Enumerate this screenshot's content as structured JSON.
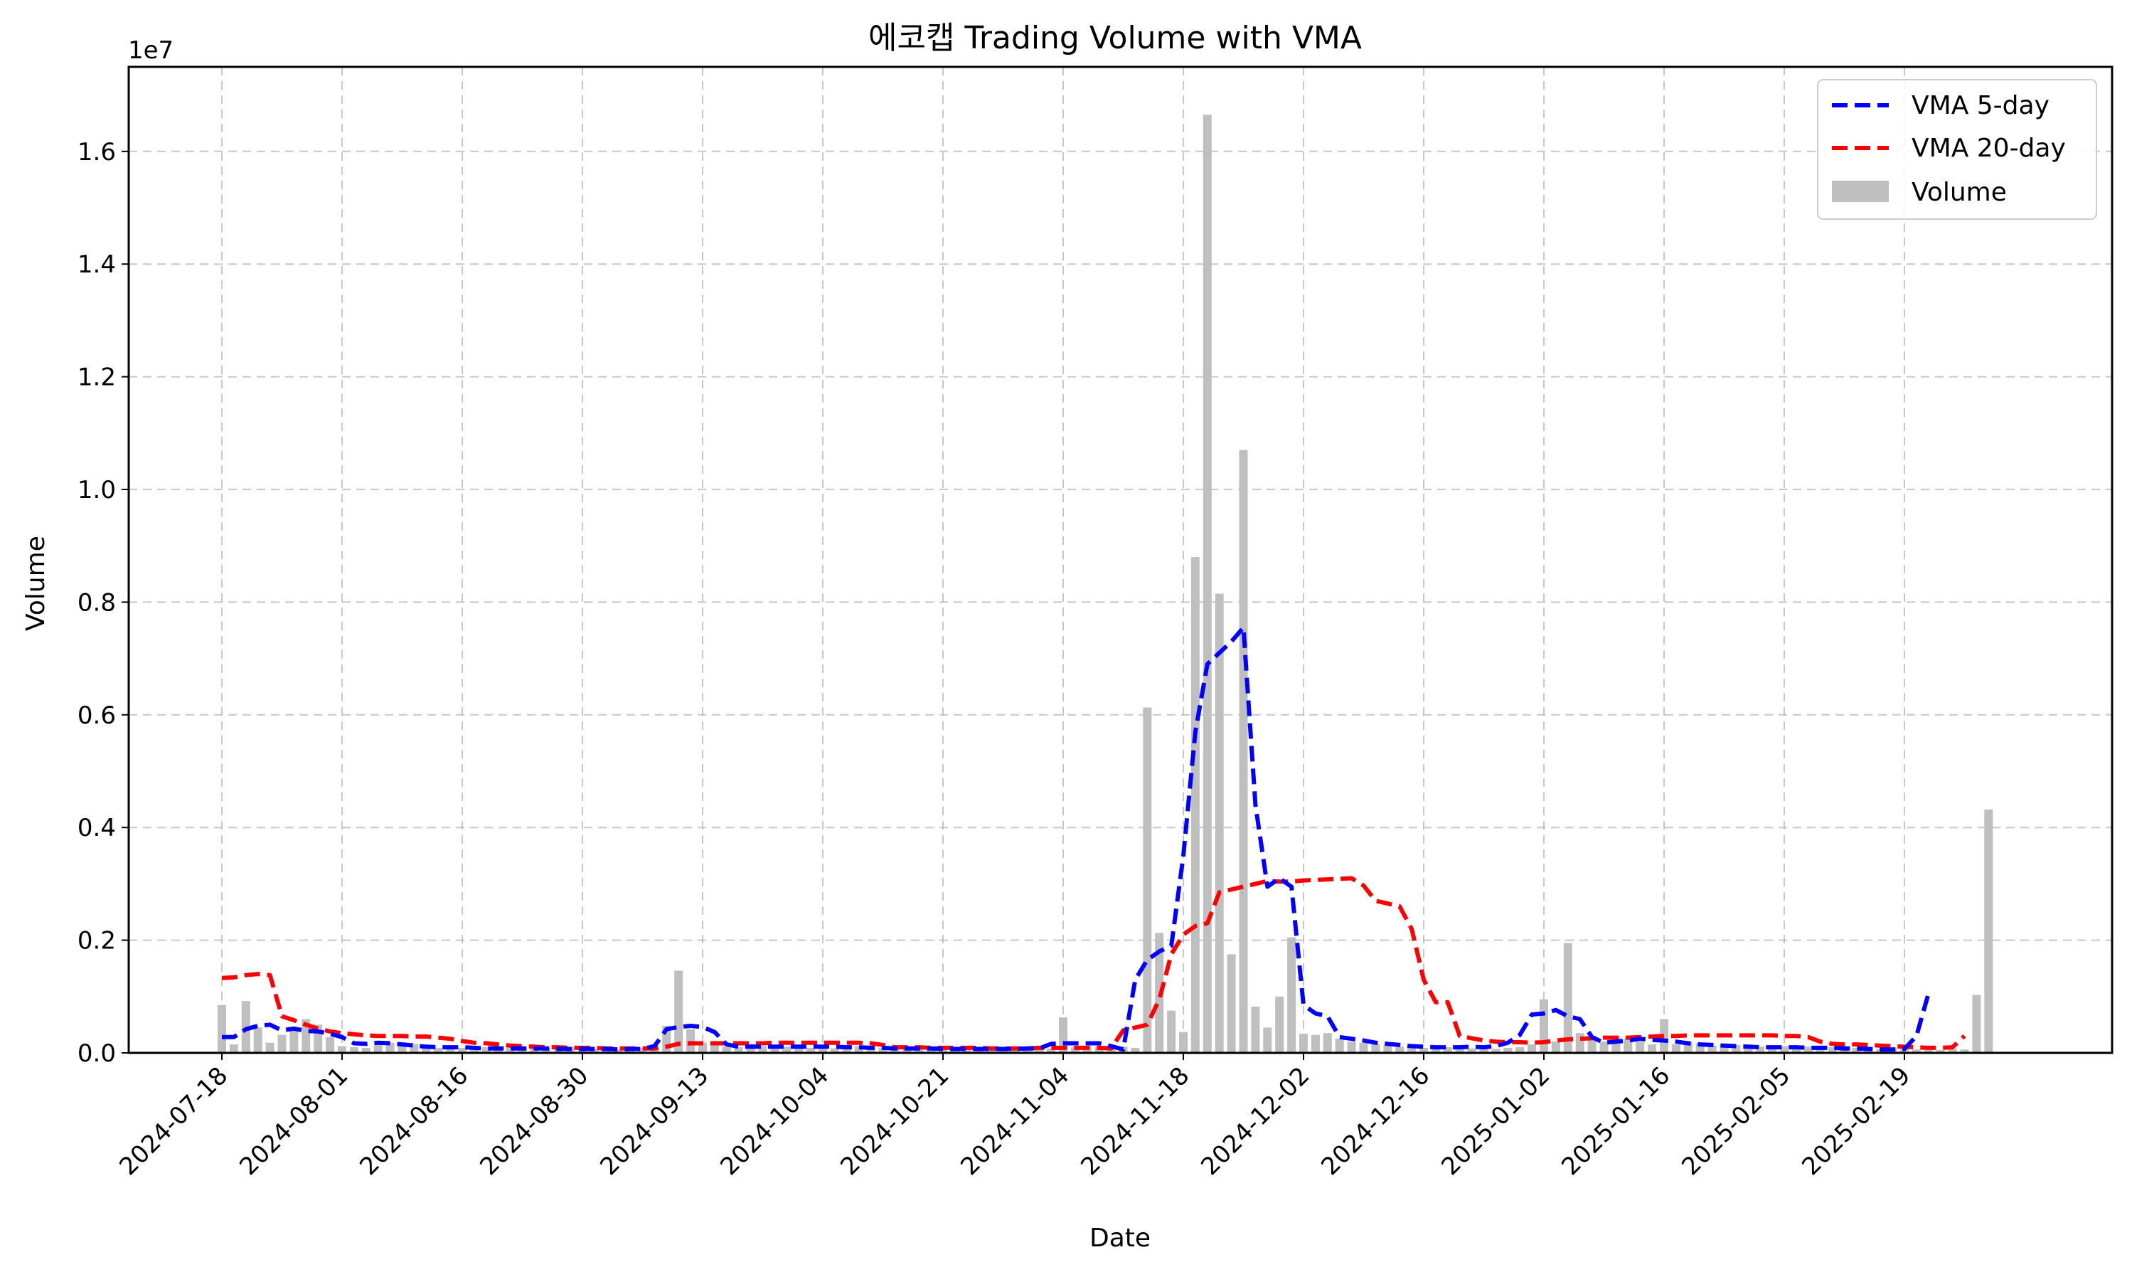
{
  "chart_data": {
    "type": "bar",
    "title": "에코캡 Trading Volume with VMA",
    "xlabel": "Date",
    "ylabel": "Volume",
    "y_offset_text": "1e7",
    "ylim": [
      0,
      17500000
    ],
    "yticks": [
      0,
      2000000,
      4000000,
      6000000,
      8000000,
      10000000,
      12000000,
      14000000,
      16000000
    ],
    "ytick_labels": [
      "0.0",
      "0.2",
      "0.4",
      "0.6",
      "0.8",
      "1.0",
      "1.2",
      "1.4",
      "1.6"
    ],
    "xticks": [
      "2024-07-18",
      "2024-08-01",
      "2024-08-16",
      "2024-08-30",
      "2024-09-13",
      "2024-10-04",
      "2024-10-21",
      "2024-11-04",
      "2024-11-18",
      "2024-12-02",
      "2024-12-16",
      "2025-01-02",
      "2025-01-16",
      "2025-02-05",
      "2025-02-19"
    ],
    "xtick_index": [
      0,
      10,
      20,
      30,
      40,
      50,
      60,
      70,
      80,
      90,
      100,
      110,
      120,
      130,
      140
    ],
    "grid": true,
    "legend_position": "top-right",
    "legend": [
      "VMA 5-day",
      "VMA 20-day",
      "Volume"
    ],
    "colors": {
      "volume": "#bfbfbf",
      "vma5": "#0000ff",
      "vma20": "#ff0000"
    },
    "volume": [
      850000,
      150000,
      920000,
      450000,
      180000,
      320000,
      400000,
      600000,
      500000,
      280000,
      120000,
      100000,
      90000,
      200000,
      180000,
      120000,
      160000,
      110000,
      90000,
      130000,
      90000,
      110000,
      100000,
      90000,
      110000,
      90000,
      80000,
      90000,
      80000,
      100000,
      80000,
      70000,
      80000,
      60000,
      70000,
      90000,
      80000,
      480000,
      1460000,
      420000,
      180000,
      160000,
      110000,
      100000,
      160000,
      120000,
      90000,
      110000,
      120000,
      90000,
      100000,
      80000,
      110000,
      120000,
      100000,
      90000,
      80000,
      100000,
      90000,
      80000,
      70000,
      80000,
      70000,
      60000,
      70000,
      80000,
      90000,
      70000,
      90000,
      80000,
      630000,
      100000,
      120000,
      100000,
      130000,
      110000,
      90000,
      6130000,
      2130000,
      750000,
      370000,
      8800000,
      16650000,
      8150000,
      1750000,
      10700000,
      820000,
      450000,
      1000000,
      2050000,
      340000,
      320000,
      350000,
      250000,
      200000,
      180000,
      150000,
      130000,
      110000,
      100000,
      90000,
      110000,
      100000,
      90000,
      80000,
      80000,
      70000,
      90000,
      100000,
      150000,
      950000,
      200000,
      1950000,
      350000,
      300000,
      200000,
      300000,
      250000,
      200000,
      150000,
      600000,
      150000,
      200000,
      170000,
      130000,
      150000,
      140000,
      120000,
      110000,
      130000,
      120000,
      100000,
      110000,
      90000,
      100000,
      80000,
      90000,
      80000,
      70000,
      80000,
      70000,
      60000,
      50000,
      50000,
      80000,
      60000,
      1030000,
      4320000
    ],
    "vma5": [
      280000,
      280000,
      420000,
      480000,
      500000,
      400000,
      430000,
      390000,
      380000,
      340000,
      280000,
      170000,
      160000,
      180000,
      170000,
      150000,
      130000,
      110000,
      100000,
      100000,
      100000,
      90000,
      80000,
      80000,
      80000,
      80000,
      80000,
      80000,
      70000,
      70000,
      70000,
      70000,
      70000,
      60000,
      70000,
      70000,
      120000,
      420000,
      460000,
      480000,
      460000,
      370000,
      150000,
      110000,
      110000,
      110000,
      110000,
      110000,
      110000,
      110000,
      110000,
      110000,
      100000,
      100000,
      90000,
      90000,
      80000,
      80000,
      80000,
      80000,
      70000,
      70000,
      70000,
      70000,
      70000,
      70000,
      70000,
      80000,
      80000,
      160000,
      170000,
      170000,
      170000,
      170000,
      120000,
      60000,
      1300000,
      1650000,
      1800000,
      1900000,
      3500000,
      5700000,
      6900000,
      7100000,
      7300000,
      7550000,
      4400000,
      2950000,
      3100000,
      2950000,
      850000,
      700000,
      650000,
      280000,
      250000,
      220000,
      180000,
      160000,
      140000,
      120000,
      110000,
      100000,
      100000,
      100000,
      110000,
      100000,
      120000,
      180000,
      320000,
      680000,
      700000,
      760000,
      650000,
      600000,
      280000,
      180000,
      200000,
      220000,
      250000,
      230000,
      220000,
      200000,
      170000,
      150000,
      140000,
      130000,
      120000,
      110000,
      100000,
      100000,
      100000,
      100000,
      90000,
      90000,
      90000,
      80000,
      80000,
      70000,
      60000,
      60000,
      70000,
      300000,
      1050000
    ],
    "vma20": [
      1330000,
      1340000,
      1380000,
      1400000,
      1380000,
      650000,
      580000,
      500000,
      430000,
      380000,
      350000,
      330000,
      310000,
      300000,
      300000,
      300000,
      290000,
      290000,
      270000,
      250000,
      210000,
      180000,
      170000,
      150000,
      130000,
      120000,
      110000,
      100000,
      100000,
      90000,
      90000,
      90000,
      80000,
      80000,
      80000,
      80000,
      80000,
      110000,
      160000,
      170000,
      170000,
      170000,
      170000,
      170000,
      170000,
      170000,
      180000,
      180000,
      180000,
      180000,
      180000,
      180000,
      180000,
      180000,
      170000,
      140000,
      100000,
      100000,
      100000,
      90000,
      90000,
      90000,
      90000,
      90000,
      80000,
      80000,
      80000,
      80000,
      90000,
      90000,
      90000,
      90000,
      90000,
      90000,
      80000,
      400000,
      450000,
      500000,
      950000,
      1750000,
      2100000,
      2250000,
      2300000,
      2850000,
      2900000,
      2950000,
      3000000,
      3050000,
      3040000,
      3040000,
      3060000,
      3070000,
      3080000,
      3090000,
      3100000,
      2970000,
      2700000,
      2650000,
      2600000,
      2200000,
      1300000,
      900000,
      900000,
      300000,
      260000,
      220000,
      200000,
      190000,
      190000,
      180000,
      190000,
      220000,
      240000,
      250000,
      260000,
      270000,
      270000,
      270000,
      280000,
      290000,
      300000,
      300000,
      310000,
      310000,
      310000,
      310000,
      310000,
      310000,
      310000,
      310000,
      300000,
      300000,
      280000,
      200000,
      160000,
      150000,
      150000,
      140000,
      130000,
      120000,
      110000,
      100000,
      90000,
      90000,
      100000,
      300000
    ]
  }
}
